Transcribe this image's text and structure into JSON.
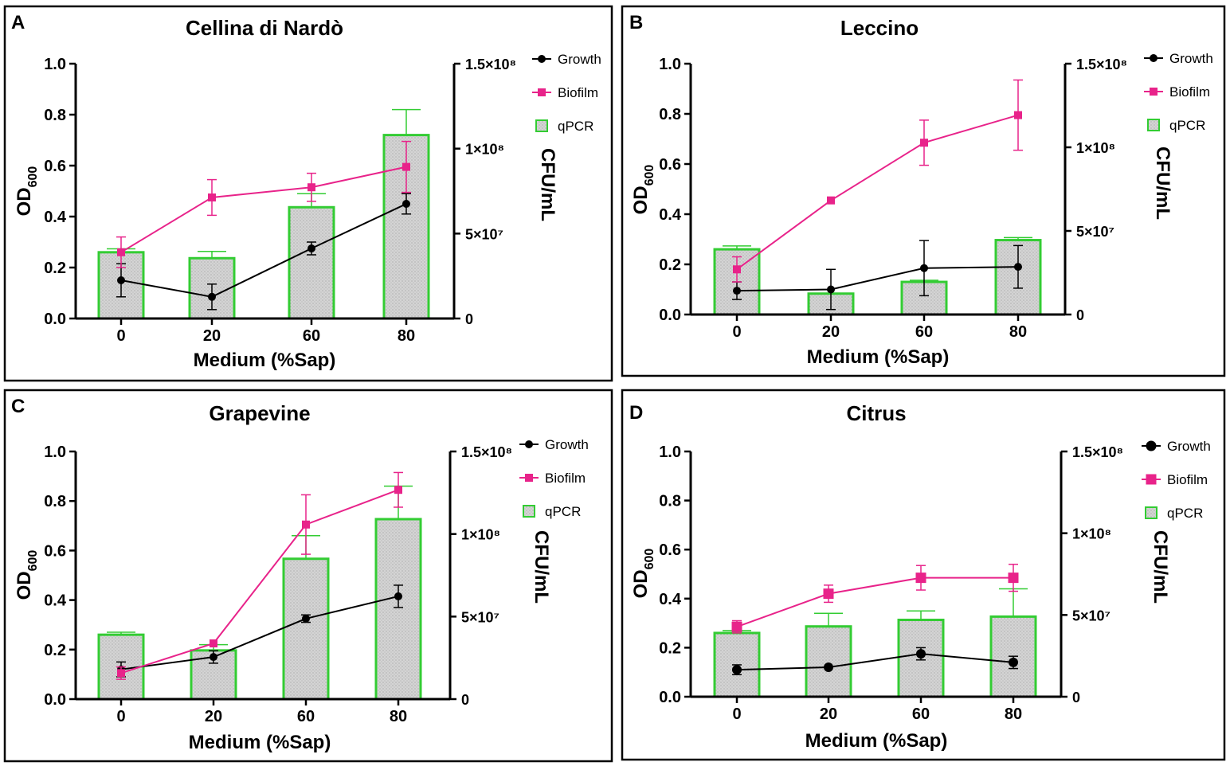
{
  "colors": {
    "growth": "#000000",
    "biofilm": "#e8238a",
    "qpcr_edge": "#33cc33",
    "qpcr_fill": "#d4d4d4"
  },
  "chart_data": [
    {
      "type": "bar+line",
      "panel": "A",
      "title": "Cellina di Nardò",
      "xlabel": "Medium (%Sap)",
      "ylabel_main": "OD",
      "ylabel_sub": "600",
      "y2label": "CFU/mL",
      "categories": [
        "0",
        "20",
        "60",
        "80"
      ],
      "ylim": [
        0,
        1.0
      ],
      "yticks": [
        0.0,
        0.2,
        0.4,
        0.6,
        0.8,
        1.0
      ],
      "ytick_labels": [
        "0.0",
        "0.2",
        "0.4",
        "0.6",
        "0.8",
        "1.0"
      ],
      "y2lim": [
        0,
        150000000
      ],
      "y2ticks": [
        0,
        50000000,
        100000000,
        150000000
      ],
      "y2tick_labels": [
        "0",
        "5×10⁷",
        "1×10⁸",
        "1.5×10⁸"
      ],
      "legend": [
        "Growth",
        "Biofilm",
        "qPCR"
      ],
      "series": [
        {
          "name": "Growth",
          "kind": "line",
          "axis": "left",
          "values": [
            0.15,
            0.085,
            0.275,
            0.45
          ],
          "errors": [
            0.065,
            0.05,
            0.025,
            0.04
          ]
        },
        {
          "name": "Biofilm",
          "kind": "line",
          "axis": "left",
          "values": [
            0.26,
            0.475,
            0.515,
            0.595
          ],
          "errors": [
            0.06,
            0.07,
            0.055,
            0.1
          ]
        },
        {
          "name": "qPCR",
          "kind": "bar",
          "axis": "right",
          "values": [
            39000000,
            35500000,
            65500000,
            108000000
          ],
          "errors": [
            2000000,
            4000000,
            8000000,
            15000000
          ]
        }
      ]
    },
    {
      "type": "bar+line",
      "panel": "B",
      "title": "Leccino",
      "xlabel": "Medium (%Sap)",
      "ylabel_main": "OD",
      "ylabel_sub": "600",
      "y2label": "CFU/mL",
      "categories": [
        "0",
        "20",
        "60",
        "80"
      ],
      "ylim": [
        0,
        1.0
      ],
      "yticks": [
        0.0,
        0.2,
        0.4,
        0.6,
        0.8,
        1.0
      ],
      "ytick_labels": [
        "0.0",
        "0.2",
        "0.4",
        "0.6",
        "0.8",
        "1.0"
      ],
      "y2lim": [
        0,
        150000000
      ],
      "y2ticks": [
        0,
        50000000,
        100000000,
        150000000
      ],
      "y2tick_labels": [
        "0",
        "5×10⁷",
        "1×10⁸",
        "1.5×10⁸"
      ],
      "legend": [
        "Growth",
        "Biofilm",
        "qPCR"
      ],
      "series": [
        {
          "name": "Growth",
          "kind": "line",
          "axis": "left",
          "values": [
            0.095,
            0.1,
            0.185,
            0.19
          ],
          "errors": [
            0.035,
            0.08,
            0.11,
            0.085
          ]
        },
        {
          "name": "Biofilm",
          "kind": "line",
          "axis": "left",
          "values": [
            0.18,
            0.455,
            0.685,
            0.795
          ],
          "errors": [
            0.05,
            0.0,
            0.09,
            0.14
          ]
        },
        {
          "name": "qPCR",
          "kind": "bar",
          "axis": "right",
          "values": [
            39000000,
            12500000,
            19500000,
            44500000
          ],
          "errors": [
            2000000,
            0,
            1000000,
            1500000
          ]
        }
      ]
    },
    {
      "type": "bar+line",
      "panel": "C",
      "title": "Grapevine",
      "xlabel": "Medium (%Sap)",
      "ylabel_main": "OD",
      "ylabel_sub": "600",
      "y2label": "CFU/mL",
      "categories": [
        "0",
        "20",
        "60",
        "80"
      ],
      "ylim": [
        0,
        1.0
      ],
      "yticks": [
        0.0,
        0.2,
        0.4,
        0.6,
        0.8,
        1.0
      ],
      "ytick_labels": [
        "0.0",
        "0.2",
        "0.4",
        "0.6",
        "0.8",
        "1.0"
      ],
      "y2lim": [
        0,
        150000000
      ],
      "y2ticks": [
        0,
        50000000,
        100000000,
        150000000
      ],
      "y2tick_labels": [
        "0",
        "5×10⁷",
        "1×10⁸",
        "1.5×10⁸"
      ],
      "legend": [
        "Growth",
        "Biofilm",
        "qPCR"
      ],
      "series": [
        {
          "name": "Growth",
          "kind": "line",
          "axis": "left",
          "values": [
            0.12,
            0.17,
            0.325,
            0.415
          ],
          "errors": [
            0.03,
            0.025,
            0.015,
            0.045
          ]
        },
        {
          "name": "Biofilm",
          "kind": "line",
          "axis": "left",
          "values": [
            0.105,
            0.225,
            0.705,
            0.845
          ],
          "errors": [
            0.025,
            0.0,
            0.12,
            0.07
          ]
        },
        {
          "name": "qPCR",
          "kind": "bar",
          "axis": "right",
          "values": [
            39000000,
            29500000,
            85000000,
            109000000
          ],
          "errors": [
            1500000,
            3500000,
            14000000,
            20000000
          ]
        }
      ]
    },
    {
      "type": "bar+line",
      "panel": "D",
      "title": "Citrus",
      "xlabel": "Medium (%Sap)",
      "ylabel_main": "OD",
      "ylabel_sub": "600",
      "y2label": "CFU/mL",
      "categories": [
        "0",
        "20",
        "60",
        "80"
      ],
      "ylim": [
        0,
        1.0
      ],
      "yticks": [
        0.0,
        0.2,
        0.4,
        0.6,
        0.8,
        1.0
      ],
      "ytick_labels": [
        "0.0",
        "0.2",
        "0.4",
        "0.6",
        "0.8",
        "1.0"
      ],
      "y2lim": [
        0,
        150000000
      ],
      "y2ticks": [
        0,
        50000000,
        100000000,
        150000000
      ],
      "y2tick_labels": [
        "0",
        "5×10⁷",
        "1×10⁸",
        "1.5×10⁸"
      ],
      "legend": [
        "Growth",
        "Biofilm",
        "qPCR"
      ],
      "series": [
        {
          "name": "Growth",
          "kind": "line",
          "axis": "left",
          "values": [
            0.11,
            0.12,
            0.175,
            0.14
          ],
          "errors": [
            0.02,
            0.0,
            0.025,
            0.025
          ]
        },
        {
          "name": "Biofilm",
          "kind": "line",
          "axis": "left",
          "values": [
            0.285,
            0.42,
            0.485,
            0.485
          ],
          "errors": [
            0.025,
            0.035,
            0.05,
            0.055
          ]
        },
        {
          "name": "qPCR",
          "kind": "bar",
          "axis": "right",
          "values": [
            39000000,
            43000000,
            47000000,
            49000000
          ],
          "errors": [
            1500000,
            8000000,
            5500000,
            17000000
          ]
        }
      ]
    }
  ]
}
